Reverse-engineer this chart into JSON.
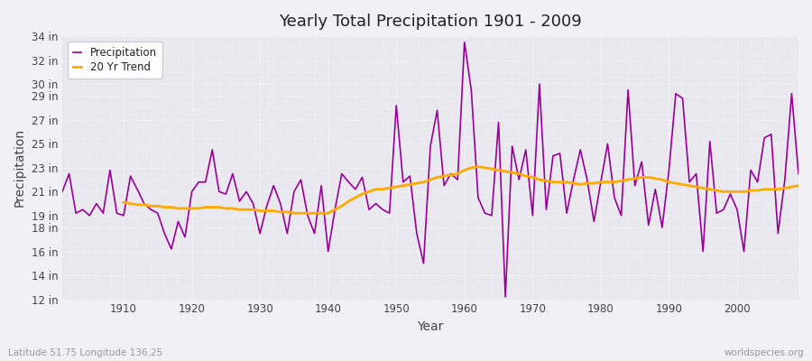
{
  "title": "Yearly Total Precipitation 1901 - 2009",
  "xlabel": "Year",
  "ylabel": "Precipitation",
  "background_color": "#f0f0f5",
  "plot_bg_color": "#e8e8ee",
  "precip_color": "#990099",
  "trend_color": "#ffaa00",
  "precip_label": "Precipitation",
  "trend_label": "20 Yr Trend",
  "footer_left": "Latitude 51.75 Longitude 136.25",
  "footer_right": "worldspecies.org",
  "years": [
    1901,
    1902,
    1903,
    1904,
    1905,
    1906,
    1907,
    1908,
    1909,
    1910,
    1911,
    1912,
    1913,
    1914,
    1915,
    1916,
    1917,
    1918,
    1919,
    1920,
    1921,
    1922,
    1923,
    1924,
    1925,
    1926,
    1927,
    1928,
    1929,
    1930,
    1931,
    1932,
    1933,
    1934,
    1935,
    1936,
    1937,
    1938,
    1939,
    1940,
    1941,
    1942,
    1943,
    1944,
    1945,
    1946,
    1947,
    1948,
    1949,
    1950,
    1951,
    1952,
    1953,
    1954,
    1955,
    1956,
    1957,
    1958,
    1959,
    1960,
    1961,
    1962,
    1963,
    1964,
    1965,
    1966,
    1967,
    1968,
    1969,
    1970,
    1971,
    1972,
    1973,
    1974,
    1975,
    1976,
    1977,
    1978,
    1979,
    1980,
    1981,
    1982,
    1983,
    1984,
    1985,
    1986,
    1987,
    1988,
    1989,
    1990,
    1991,
    1992,
    1993,
    1994,
    1995,
    1996,
    1997,
    1998,
    1999,
    2000,
    2001,
    2002,
    2003,
    2004,
    2005,
    2006,
    2007,
    2008,
    2009
  ],
  "precip": [
    21.0,
    22.5,
    19.2,
    19.5,
    19.0,
    20.0,
    19.2,
    22.8,
    19.2,
    19.0,
    22.3,
    21.2,
    20.0,
    19.5,
    19.2,
    17.5,
    16.2,
    18.5,
    17.2,
    21.0,
    21.8,
    21.8,
    24.5,
    21.0,
    20.8,
    22.5,
    20.2,
    21.0,
    20.0,
    17.5,
    19.8,
    21.5,
    20.0,
    17.5,
    21.0,
    22.0,
    19.0,
    17.5,
    21.5,
    16.0,
    19.5,
    22.5,
    21.8,
    21.2,
    22.2,
    19.5,
    20.0,
    19.5,
    19.2,
    28.2,
    21.8,
    22.3,
    17.5,
    15.0,
    24.8,
    27.8,
    21.5,
    22.5,
    22.0,
    33.5,
    29.5,
    20.5,
    19.2,
    19.0,
    26.8,
    12.2,
    24.8,
    22.0,
    24.5,
    19.0,
    30.0,
    19.5,
    24.0,
    24.2,
    19.2,
    22.0,
    24.5,
    22.0,
    18.5,
    21.8,
    25.0,
    20.5,
    19.0,
    29.5,
    21.5,
    23.5,
    18.2,
    21.2,
    18.0,
    22.8,
    29.2,
    28.8,
    21.8,
    22.5,
    16.0,
    25.2,
    19.2,
    19.5,
    20.8,
    19.5,
    16.0,
    22.8,
    21.8,
    25.5,
    25.8,
    17.5,
    22.0,
    29.2,
    22.5
  ],
  "trend_years": [
    1910,
    1911,
    1912,
    1913,
    1914,
    1915,
    1916,
    1917,
    1918,
    1919,
    1920,
    1921,
    1922,
    1923,
    1924,
    1925,
    1926,
    1927,
    1928,
    1929,
    1930,
    1931,
    1932,
    1933,
    1934,
    1935,
    1936,
    1937,
    1938,
    1939,
    1940,
    1941,
    1942,
    1943,
    1944,
    1945,
    1946,
    1947,
    1948,
    1949,
    1950,
    1951,
    1952,
    1953,
    1954,
    1955,
    1956,
    1957,
    1958,
    1959,
    1960,
    1961,
    1962,
    1963,
    1964,
    1965,
    1966,
    1967,
    1968,
    1969,
    1970,
    1971,
    1972,
    1973,
    1974,
    1975,
    1976,
    1977,
    1978,
    1979,
    1980,
    1981,
    1982,
    1983,
    1984,
    1985,
    1986,
    1987,
    1988,
    1989,
    1990,
    1991,
    1992,
    1993,
    1994,
    1995,
    1996,
    1997,
    1998,
    1999,
    2000,
    2001,
    2002,
    2003,
    2004,
    2005,
    2006,
    2007,
    2008,
    2009
  ],
  "trend": [
    20.1,
    20.0,
    19.9,
    19.9,
    19.8,
    19.8,
    19.7,
    19.7,
    19.6,
    19.6,
    19.6,
    19.6,
    19.7,
    19.7,
    19.7,
    19.6,
    19.6,
    19.5,
    19.5,
    19.5,
    19.4,
    19.4,
    19.4,
    19.3,
    19.3,
    19.2,
    19.2,
    19.2,
    19.2,
    19.2,
    19.2,
    19.5,
    19.8,
    20.2,
    20.5,
    20.8,
    21.0,
    21.2,
    21.2,
    21.3,
    21.4,
    21.5,
    21.6,
    21.7,
    21.8,
    22.0,
    22.2,
    22.3,
    22.4,
    22.5,
    22.8,
    23.0,
    23.1,
    23.0,
    22.9,
    22.8,
    22.7,
    22.6,
    22.5,
    22.3,
    22.2,
    22.0,
    21.9,
    21.8,
    21.8,
    21.8,
    21.7,
    21.6,
    21.7,
    21.7,
    21.8,
    21.8,
    21.8,
    21.9,
    22.0,
    22.1,
    22.2,
    22.2,
    22.1,
    22.0,
    21.8,
    21.7,
    21.6,
    21.5,
    21.4,
    21.3,
    21.2,
    21.1,
    21.0,
    21.0,
    21.0,
    21.0,
    21.1,
    21.1,
    21.2,
    21.2,
    21.2,
    21.3,
    21.4,
    21.5
  ],
  "ylim": [
    12,
    34
  ],
  "yticks": [
    12,
    14,
    16,
    18,
    19,
    21,
    23,
    25,
    27,
    29,
    30,
    32,
    34
  ],
  "xlim": [
    1901,
    2009
  ],
  "xticks": [
    1910,
    1920,
    1930,
    1940,
    1950,
    1960,
    1970,
    1980,
    1990,
    2000
  ]
}
